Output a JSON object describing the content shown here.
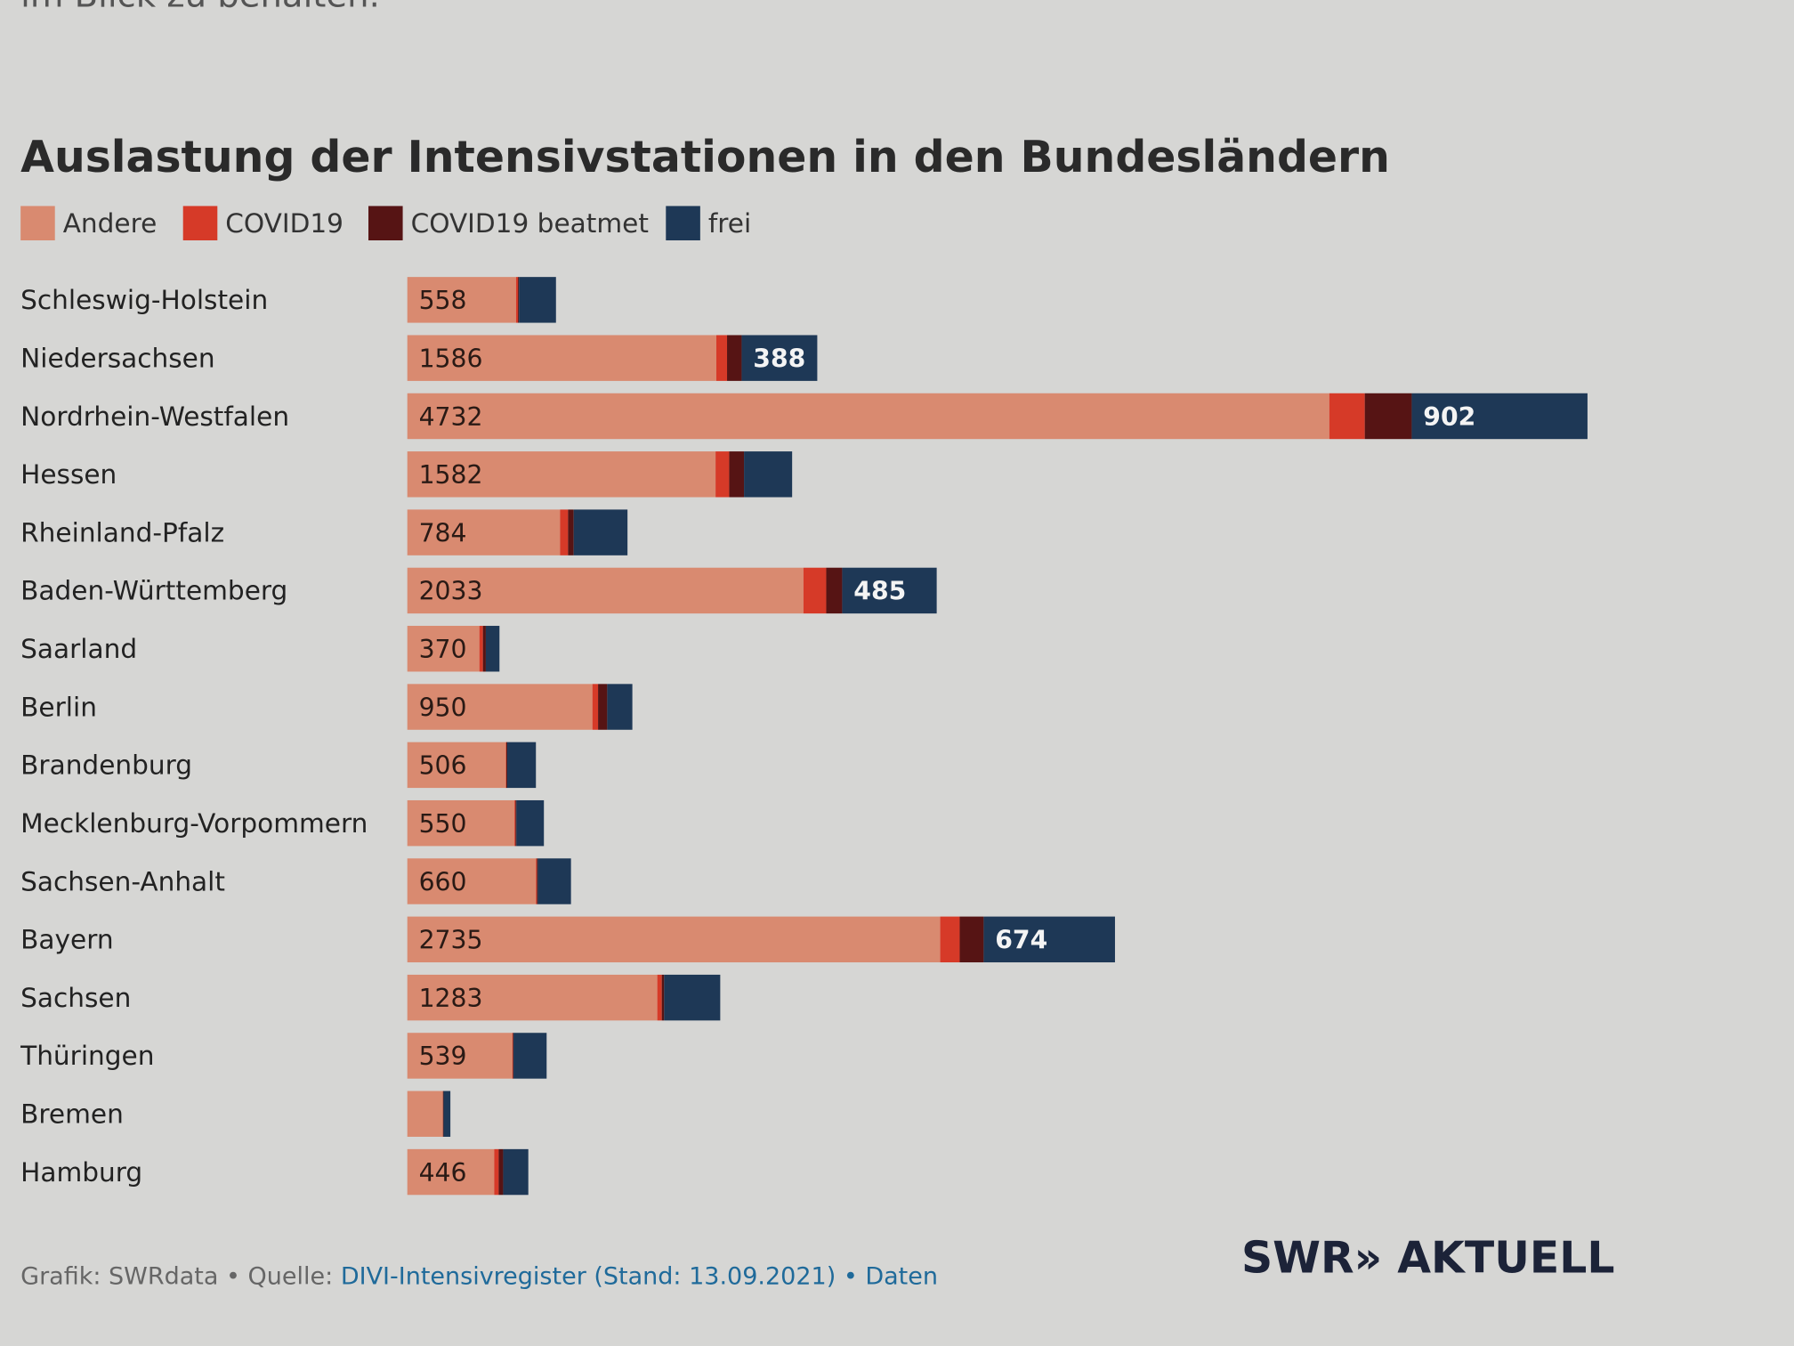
{
  "intro_text_fragment": "im Blick zu behalten.",
  "chart_data": {
    "type": "bar",
    "orientation": "horizontal",
    "stacked": true,
    "title": "Auslastung der Intensivstationen in den Bundesländern",
    "legend_position": "top-left",
    "grid": false,
    "series_colors": {
      "Andere": "#d98a70",
      "COVID19": "#d63a28",
      "COVID19 beatmet": "#561414",
      "frei": "#1e3856"
    },
    "categories": [
      "Schleswig-Holstein",
      "Niedersachsen",
      "Nordrhein-Westfalen",
      "Hessen",
      "Rheinland-Pfalz",
      "Baden-Württemberg",
      "Saarland",
      "Berlin",
      "Brandenburg",
      "Mecklenburg-Vorpommern",
      "Sachsen-Anhalt",
      "Bayern",
      "Sachsen",
      "Thüringen",
      "Bremen",
      "Hamburg"
    ],
    "series": [
      {
        "name": "Andere",
        "values": [
          558,
          1586,
          4732,
          1582,
          784,
          2033,
          370,
          950,
          506,
          550,
          660,
          2735,
          1283,
          539,
          182,
          446
        ]
      },
      {
        "name": "COVID19",
        "values": [
          10,
          55,
          182,
          70,
          41,
          117,
          18,
          29,
          2,
          5,
          5,
          100,
          23,
          3,
          1,
          23
        ]
      },
      {
        "name": "COVID19 beatmet",
        "values": [
          5,
          75,
          241,
          76,
          29,
          82,
          15,
          47,
          5,
          5,
          5,
          123,
          12,
          3,
          3,
          23
        ]
      },
      {
        "name": "frei",
        "values": [
          190,
          388,
          902,
          247,
          276,
          485,
          70,
          129,
          147,
          141,
          170,
          674,
          288,
          170,
          35,
          129
        ]
      }
    ],
    "labels_andere": [
      "558",
      "1586",
      "4732",
      "1582",
      "784",
      "2033",
      "370",
      "950",
      "506",
      "550",
      "660",
      "2735",
      "1283",
      "539",
      "",
      "446"
    ],
    "labels_frei": [
      "",
      "388",
      "902",
      "",
      "",
      "485",
      "",
      "",
      "",
      "",
      "",
      "674",
      "",
      "",
      "",
      ""
    ]
  },
  "footer": {
    "credit": "Grafik: SWRdata • Quelle: ",
    "source_link": "DIVI-Intensivregister (Stand: 13.09.2021)",
    "separator": " • ",
    "data_link": "Daten"
  },
  "logo": "SWR» AKTUELL"
}
